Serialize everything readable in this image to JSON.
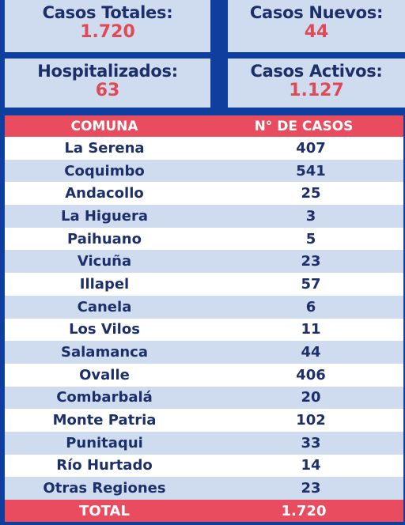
{
  "summary": {
    "casos_totales": {
      "label": "Casos Totales:",
      "value": "1.720"
    },
    "casos_nuevos": {
      "label": "Casos Nuevos:",
      "value": "44"
    },
    "hospitalizados": {
      "label": "Hospitalizados:",
      "value": "63"
    },
    "casos_activos": {
      "label": "Casos Activos:",
      "value": "1.127"
    }
  },
  "table": {
    "headers": [
      "COMUNA",
      "N° DE CASOS"
    ],
    "rows": [
      {
        "comuna": "La Serena",
        "casos": "407"
      },
      {
        "comuna": "Coquimbo",
        "casos": "541"
      },
      {
        "comuna": "Andacollo",
        "casos": "25"
      },
      {
        "comuna": "La Higuera",
        "casos": "3"
      },
      {
        "comuna": "Paihuano",
        "casos": "5"
      },
      {
        "comuna": "Vicuña",
        "casos": "23"
      },
      {
        "comuna": "Illapel",
        "casos": "57"
      },
      {
        "comuna": "Canela",
        "casos": "6"
      },
      {
        "comuna": "Los Vilos",
        "casos": "11"
      },
      {
        "comuna": "Salamanca",
        "casos": "44"
      },
      {
        "comuna": "Ovalle",
        "casos": "406"
      },
      {
        "comuna": "Combarbalá",
        "casos": "20"
      },
      {
        "comuna": "Monte Patria",
        "casos": "102"
      },
      {
        "comuna": "Punitaqui",
        "casos": "33"
      },
      {
        "comuna": "Río Hurtado",
        "casos": "14"
      },
      {
        "comuna": "Otras Regiones",
        "casos": "23"
      }
    ],
    "total": {
      "label": "TOTAL",
      "value": "1.720"
    }
  },
  "colors": {
    "background": "#0e3f9e",
    "card": "#cfdcef",
    "accent_red": "#e84c5e",
    "text_navy": "#1d2f6b"
  }
}
